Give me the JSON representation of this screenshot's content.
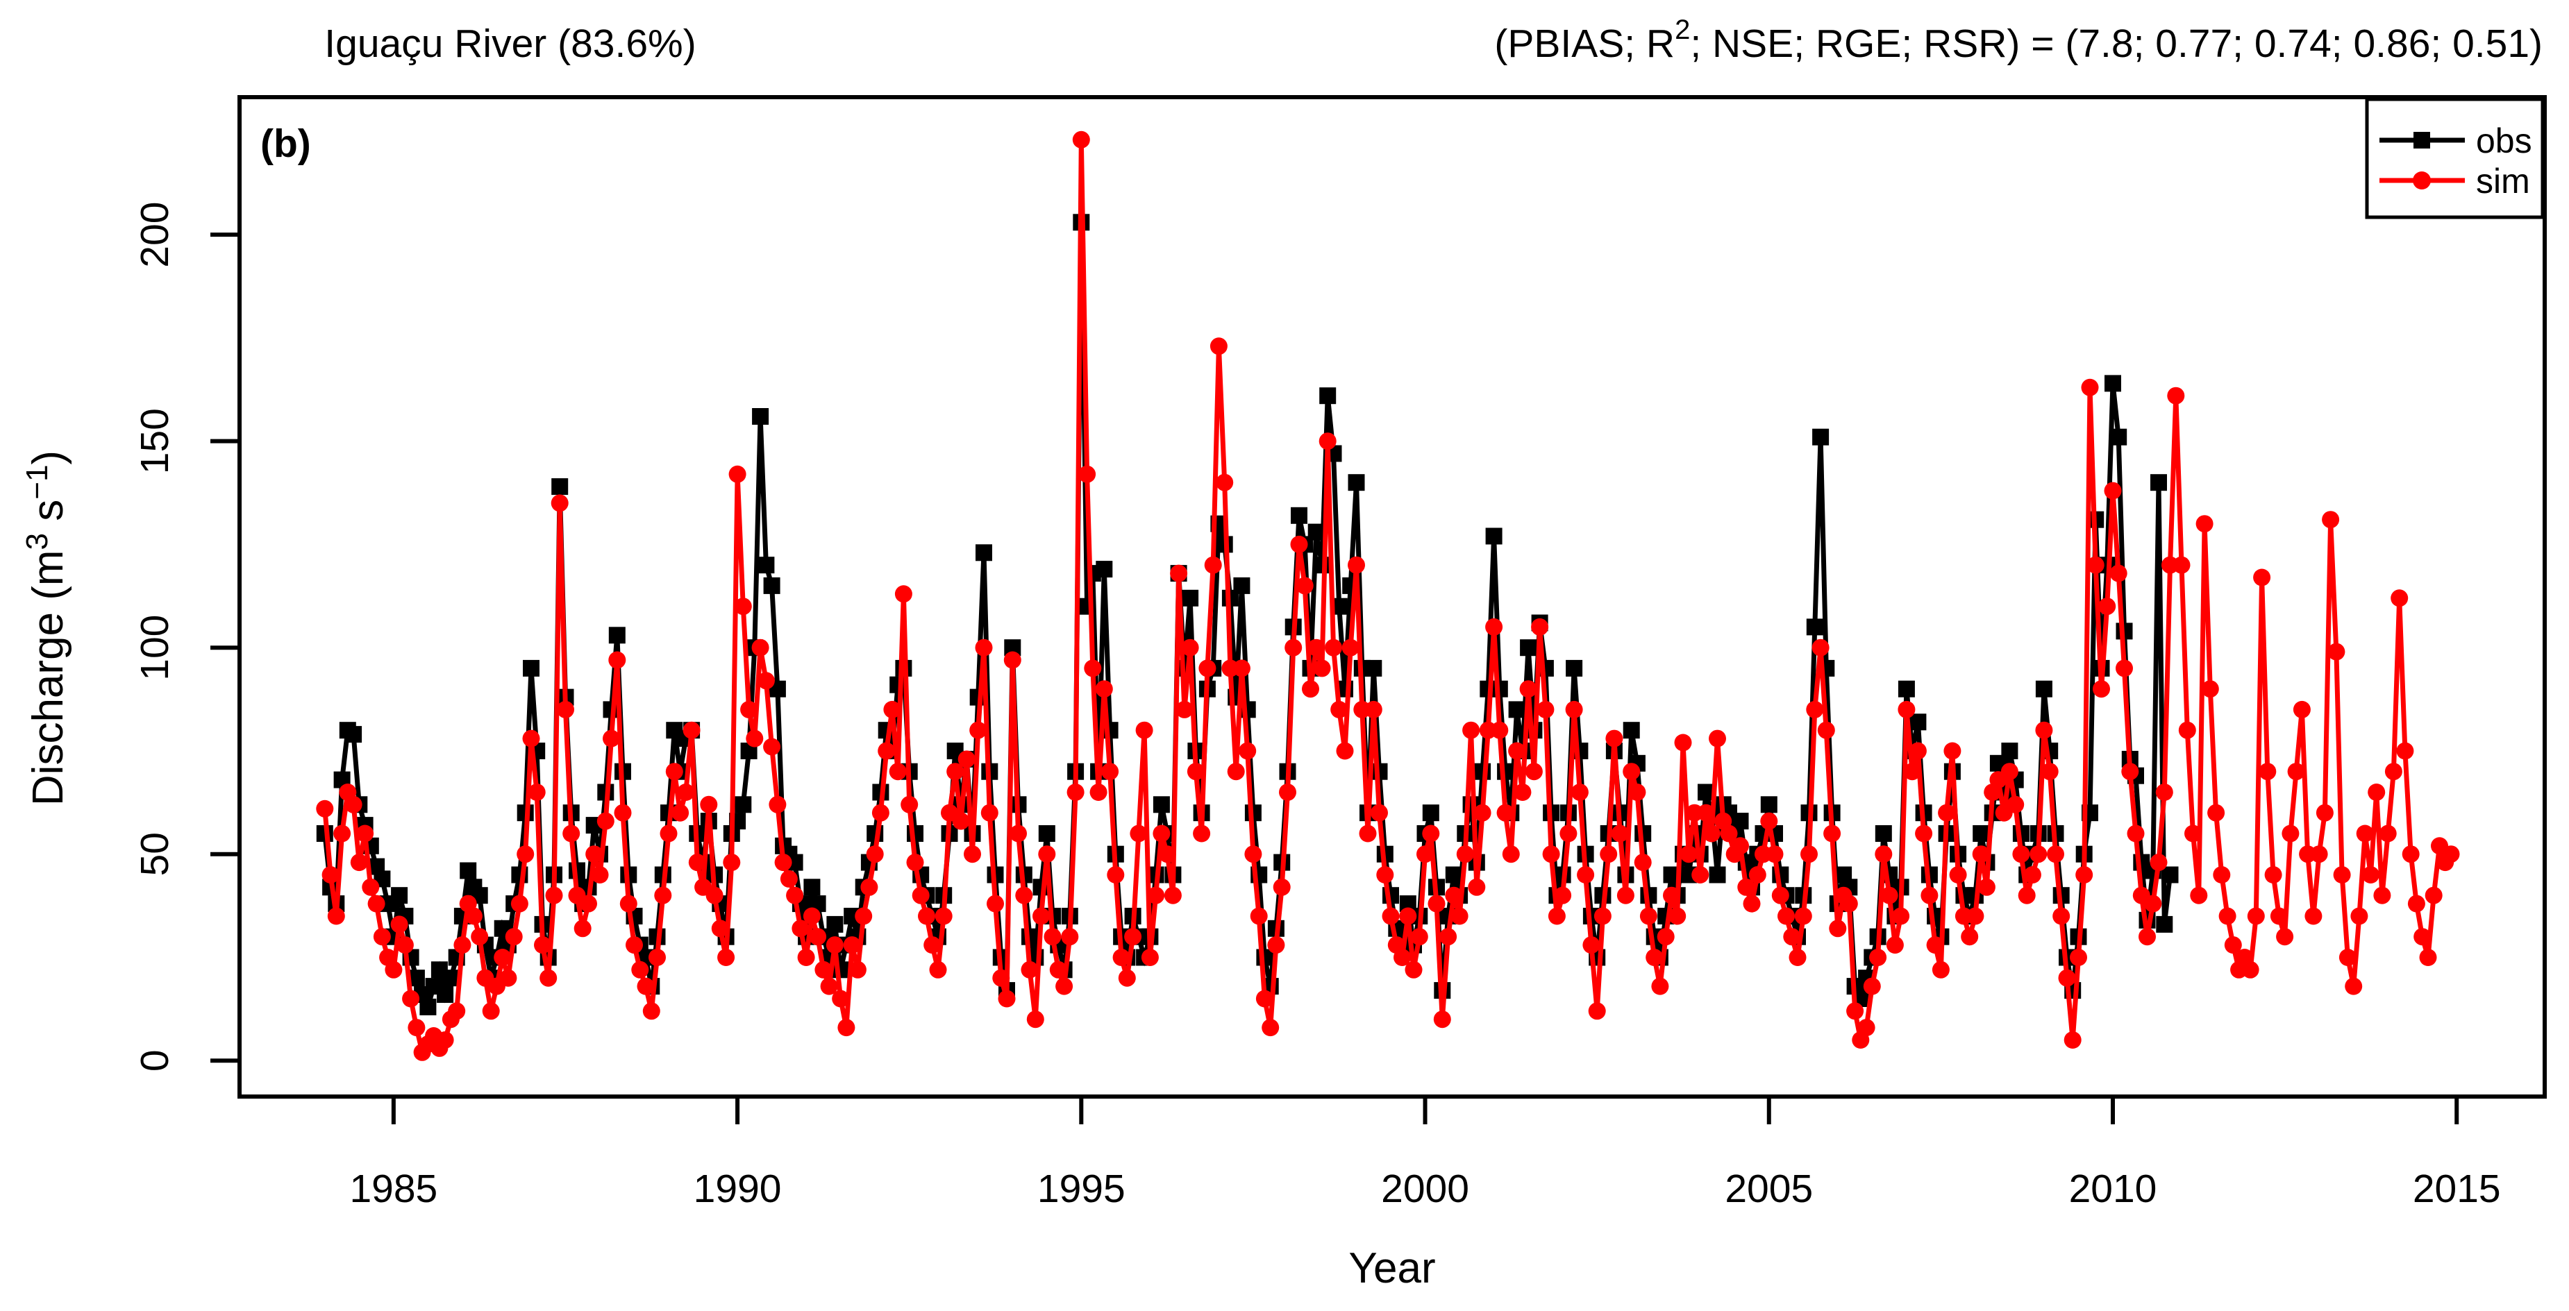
{
  "page": {
    "background": "#ffffff"
  },
  "header": {
    "title_left": "Iguaçu River (83.6%)",
    "title_right_text": "(PBIAS; R2; NSE; RGE; RSR) = (7.8; 0.77; 0.74; 0.86; 0.51)",
    "panel_label": "(b)"
  },
  "chart_data": {
    "type": "line",
    "title": "Iguaçu River (83.6%)",
    "title_right_parts": [
      {
        "t": "(PBIAS; R"
      },
      {
        "t": "2",
        "sup": true
      },
      {
        "t": "; NSE; RGE; RSR) = (7.8; 0.77; 0.74; 0.86; 0.51)"
      }
    ],
    "metrics": {
      "PBIAS": 7.8,
      "R2": 0.77,
      "NSE": 0.74,
      "RGE": 0.86,
      "RSR": 0.51,
      "calibration_pct": 83.6
    },
    "panel_label": "(b)",
    "xlabel": "Year",
    "ylabel_text": "Discharge (m3 s-1)",
    "ylabel_parts": [
      {
        "t": "Discharge (m"
      },
      {
        "t": "3",
        "sup": true
      },
      {
        "t": " s"
      },
      {
        "t": "−1",
        "sup": true
      },
      {
        "t": ")"
      }
    ],
    "xlim": [
      1982.76,
      2016.28
    ],
    "ylim": [
      -8.7,
      233.3
    ],
    "xticks": [
      1985,
      1990,
      1995,
      2000,
      2005,
      2010,
      2015
    ],
    "yticks": [
      0,
      50,
      100,
      150,
      200
    ],
    "grid": false,
    "legend_position": "top-right",
    "colors": {
      "obs": "#000000",
      "sim": "#ff0000"
    },
    "series": [
      {
        "name": "obs",
        "color": "#000000",
        "marker": "square",
        "start_year": 1984.0,
        "interval_months": 1,
        "values": [
          55,
          42,
          38,
          68,
          80,
          79,
          62,
          57,
          52,
          47,
          44,
          38,
          30,
          40,
          35,
          25,
          20,
          16,
          13,
          18,
          22,
          16,
          20,
          25,
          35,
          46,
          42,
          40,
          28,
          20,
          25,
          32,
          28,
          38,
          45,
          60,
          95,
          75,
          33,
          25,
          45,
          139,
          88,
          60,
          46,
          38,
          42,
          57,
          50,
          65,
          85,
          103,
          70,
          45,
          35,
          28,
          25,
          18,
          30,
          45,
          60,
          80,
          70,
          78,
          80,
          55,
          48,
          58,
          45,
          38,
          30,
          55,
          58,
          62,
          75,
          100,
          156,
          120,
          115,
          90,
          52,
          50,
          48,
          38,
          30,
          42,
          38,
          30,
          25,
          33,
          22,
          28,
          35,
          30,
          42,
          48,
          55,
          65,
          80,
          75,
          91,
          95,
          70,
          55,
          45,
          40,
          35,
          30,
          40,
          55,
          75,
          62,
          73,
          55,
          88,
          123,
          70,
          45,
          25,
          17,
          100,
          62,
          45,
          30,
          25,
          42,
          55,
          35,
          28,
          22,
          35,
          70,
          203,
          110,
          118,
          70,
          119,
          80,
          50,
          30,
          25,
          35,
          30,
          25,
          30,
          45,
          62,
          55,
          45,
          118,
          95,
          112,
          75,
          60,
          90,
          95,
          130,
          125,
          112,
          88,
          115,
          85,
          60,
          45,
          25,
          18,
          32,
          48,
          70,
          105,
          132,
          125,
          95,
          128,
          120,
          161,
          147,
          110,
          90,
          115,
          140,
          95,
          60,
          95,
          70,
          50,
          40,
          32,
          30,
          38,
          28,
          35,
          55,
          60,
          42,
          17,
          35,
          45,
          40,
          55,
          62,
          48,
          70,
          90,
          127,
          90,
          70,
          60,
          85,
          75,
          100,
          80,
          106,
          95,
          60,
          40,
          45,
          60,
          95,
          75,
          50,
          35,
          25,
          40,
          55,
          75,
          60,
          45,
          80,
          72,
          55,
          40,
          30,
          25,
          35,
          45,
          40,
          50,
          45,
          55,
          50,
          65,
          60,
          45,
          62,
          60,
          55,
          58,
          48,
          42,
          50,
          55,
          62,
          55,
          45,
          40,
          35,
          30,
          40,
          60,
          105,
          151,
          95,
          60,
          38,
          45,
          42,
          18,
          15,
          20,
          25,
          30,
          55,
          45,
          35,
          42,
          90,
          75,
          82,
          60,
          45,
          35,
          30,
          55,
          70,
          50,
          40,
          35,
          40,
          55,
          48,
          60,
          72,
          65,
          75,
          68,
          55,
          45,
          50,
          55,
          90,
          75,
          55,
          40,
          25,
          17,
          30,
          50,
          60,
          131,
          95,
          120,
          164,
          151,
          104,
          73,
          69,
          48,
          34,
          46,
          140,
          33,
          45
        ]
      },
      {
        "name": "sim",
        "color": "#ff0000",
        "marker": "circle",
        "start_year": 1984.0,
        "interval_months": 1,
        "values": [
          61,
          45,
          35,
          55,
          65,
          62,
          48,
          55,
          42,
          38,
          30,
          25,
          22,
          33,
          28,
          15,
          8,
          2,
          4,
          6,
          3,
          5,
          10,
          12,
          28,
          38,
          35,
          30,
          20,
          12,
          18,
          25,
          20,
          30,
          38,
          50,
          78,
          65,
          28,
          20,
          40,
          135,
          85,
          55,
          40,
          32,
          38,
          50,
          45,
          58,
          78,
          97,
          60,
          38,
          28,
          22,
          18,
          12,
          25,
          40,
          55,
          70,
          60,
          65,
          80,
          48,
          42,
          62,
          40,
          32,
          25,
          48,
          142,
          110,
          85,
          78,
          100,
          92,
          76,
          62,
          48,
          44,
          40,
          32,
          25,
          35,
          30,
          22,
          18,
          28,
          15,
          8,
          28,
          22,
          35,
          42,
          50,
          60,
          75,
          85,
          70,
          113,
          62,
          48,
          40,
          35,
          28,
          22,
          35,
          60,
          70,
          58,
          73,
          50,
          80,
          100,
          60,
          38,
          20,
          15,
          97,
          55,
          40,
          22,
          10,
          35,
          50,
          30,
          22,
          18,
          30,
          65,
          223,
          142,
          95,
          65,
          90,
          70,
          45,
          25,
          20,
          30,
          55,
          80,
          25,
          40,
          55,
          50,
          40,
          118,
          85,
          100,
          70,
          55,
          95,
          120,
          173,
          140,
          95,
          70,
          95,
          75,
          50,
          35,
          15,
          8,
          28,
          42,
          65,
          100,
          125,
          115,
          90,
          100,
          95,
          150,
          100,
          85,
          75,
          100,
          120,
          85,
          55,
          85,
          60,
          45,
          35,
          28,
          25,
          35,
          22,
          30,
          50,
          55,
          38,
          10,
          30,
          40,
          35,
          50,
          80,
          42,
          60,
          80,
          105,
          80,
          60,
          50,
          75,
          65,
          90,
          70,
          105,
          85,
          50,
          35,
          40,
          55,
          85,
          65,
          45,
          28,
          12,
          35,
          50,
          78,
          55,
          40,
          70,
          65,
          48,
          35,
          25,
          18,
          30,
          40,
          35,
          77,
          50,
          60,
          45,
          60,
          55,
          78,
          58,
          55,
          50,
          52,
          42,
          38,
          45,
          50,
          58,
          50,
          40,
          35,
          30,
          25,
          35,
          50,
          85,
          100,
          80,
          55,
          32,
          40,
          38,
          12,
          5,
          8,
          18,
          25,
          50,
          40,
          28,
          35,
          85,
          70,
          75,
          55,
          40,
          28,
          22,
          60,
          75,
          45,
          35,
          30,
          35,
          50,
          42,
          65,
          68,
          60,
          70,
          62,
          50,
          40,
          45,
          50,
          80,
          70,
          50,
          35,
          20,
          5,
          25,
          45,
          163,
          120,
          90,
          110,
          138,
          118,
          95,
          70,
          55,
          40,
          30,
          38,
          48,
          65,
          120,
          161,
          120,
          80,
          55,
          40,
          130,
          90,
          60,
          45,
          35,
          28,
          22,
          25,
          22,
          35,
          117,
          70,
          45,
          35,
          30,
          55,
          70,
          85,
          50,
          35,
          50,
          60,
          131,
          99,
          45,
          25,
          18,
          35,
          55,
          45,
          65,
          40,
          55,
          70,
          112,
          75,
          50,
          38,
          30,
          25,
          40,
          52,
          48,
          50
        ]
      }
    ],
    "legend": [
      {
        "label": "obs",
        "color": "#000000",
        "marker": "square"
      },
      {
        "label": "sim",
        "color": "#ff0000",
        "marker": "circle"
      }
    ]
  }
}
